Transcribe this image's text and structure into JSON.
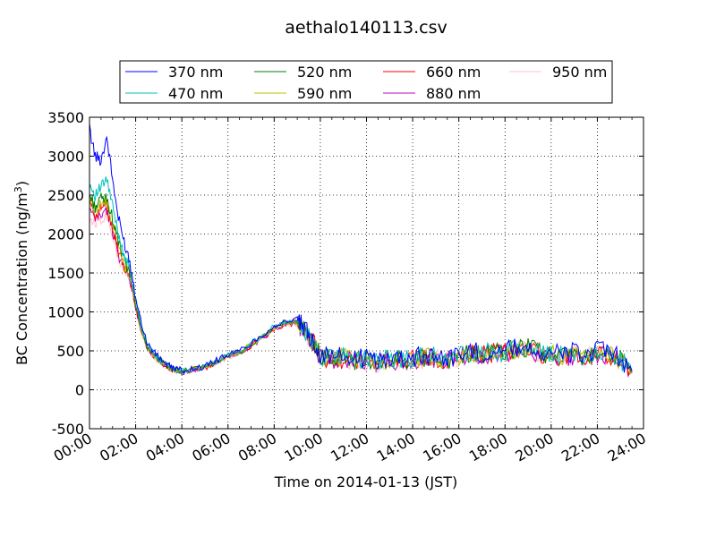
{
  "chart_data": {
    "type": "line",
    "title": "aethalo140113.csv",
    "xlabel": "Time on 2014-01-13 (JST)",
    "ylabel_main": "BC Concentration (ng/m",
    "ylabel_sup": "3",
    "ylabel_end": ")",
    "xlim": [
      "00:00",
      "24:00"
    ],
    "ylim": [
      -500,
      3500
    ],
    "x_ticks": [
      "00:00",
      "02:00",
      "04:00",
      "06:00",
      "08:00",
      "10:00",
      "12:00",
      "14:00",
      "16:00",
      "18:00",
      "20:00",
      "22:00",
      "24:00"
    ],
    "y_ticks": [
      "-500",
      "0",
      "500",
      "1000",
      "1500",
      "2000",
      "2500",
      "3000",
      "3500"
    ],
    "grid": true,
    "legend_position": "top",
    "x_hours": [
      0,
      0.25,
      0.5,
      0.75,
      1,
      1.25,
      1.5,
      1.75,
      2,
      2.25,
      2.5,
      2.75,
      3,
      3.25,
      3.5,
      3.75,
      4,
      4.5,
      5,
      5.5,
      6,
      6.5,
      7,
      7.5,
      8,
      8.5,
      9,
      9.25,
      9.5,
      9.75,
      10,
      10.5,
      11,
      11.5,
      12,
      12.5,
      13,
      13.5,
      14,
      14.5,
      15,
      15.5,
      16,
      16.5,
      17,
      17.5,
      18,
      18.5,
      19,
      19.5,
      20,
      20.5,
      21,
      21.5,
      22,
      22.5,
      23,
      23.5
    ],
    "series": [
      {
        "name": "370 nm",
        "color": "#0000ff",
        "values": [
          3350,
          3000,
          2950,
          3250,
          2700,
          2200,
          1900,
          1650,
          1200,
          850,
          600,
          500,
          420,
          350,
          300,
          270,
          250,
          270,
          300,
          380,
          450,
          500,
          600,
          700,
          820,
          880,
          900,
          800,
          700,
          600,
          450,
          420,
          430,
          400,
          400,
          380,
          400,
          420,
          420,
          430,
          450,
          400,
          450,
          500,
          470,
          500,
          500,
          550,
          550,
          500,
          480,
          450,
          480,
          450,
          500,
          480,
          400,
          250
        ]
      },
      {
        "name": "470 nm",
        "color": "#00bfbf",
        "values": [
          2650,
          2500,
          2600,
          2700,
          2350,
          2000,
          1750,
          1550,
          1150,
          800,
          580,
          480,
          400,
          340,
          290,
          260,
          240,
          265,
          290,
          370,
          440,
          490,
          590,
          690,
          810,
          870,
          880,
          790,
          690,
          590,
          440,
          410,
          420,
          390,
          390,
          370,
          390,
          410,
          410,
          420,
          440,
          390,
          440,
          490,
          460,
          490,
          490,
          540,
          540,
          490,
          470,
          440,
          470,
          440,
          490,
          470,
          390,
          240
        ]
      },
      {
        "name": "520 nm",
        "color": "#008000",
        "values": [
          2500,
          2350,
          2450,
          2450,
          2200,
          1900,
          1650,
          1500,
          1100,
          780,
          560,
          460,
          390,
          330,
          280,
          255,
          235,
          260,
          290,
          365,
          435,
          485,
          580,
          680,
          800,
          860,
          870,
          780,
          680,
          580,
          430,
          400,
          410,
          380,
          380,
          360,
          380,
          400,
          400,
          410,
          430,
          380,
          430,
          480,
          450,
          480,
          480,
          530,
          530,
          480,
          460,
          430,
          460,
          430,
          480,
          460,
          380,
          230
        ]
      },
      {
        "name": "590 nm",
        "color": "#bfbf00",
        "values": [
          2450,
          2300,
          2400,
          2400,
          2150,
          1850,
          1600,
          1480,
          1080,
          770,
          550,
          455,
          385,
          325,
          278,
          252,
          232,
          258,
          288,
          362,
          432,
          482,
          575,
          675,
          795,
          855,
          865,
          775,
          675,
          575,
          425,
          395,
          405,
          375,
          375,
          355,
          375,
          395,
          395,
          405,
          425,
          375,
          425,
          475,
          445,
          475,
          475,
          525,
          525,
          475,
          455,
          425,
          455,
          425,
          475,
          455,
          375,
          225
        ]
      },
      {
        "name": "660 nm",
        "color": "#ff0000",
        "values": [
          2400,
          2250,
          2350,
          2350,
          2100,
          1800,
          1580,
          1460,
          1060,
          760,
          545,
          450,
          380,
          320,
          275,
          250,
          230,
          255,
          285,
          360,
          430,
          480,
          570,
          670,
          790,
          850,
          860,
          770,
          670,
          570,
          420,
          390,
          400,
          370,
          370,
          350,
          370,
          390,
          390,
          400,
          420,
          370,
          420,
          470,
          440,
          470,
          470,
          520,
          520,
          470,
          450,
          420,
          450,
          420,
          470,
          450,
          370,
          220
        ]
      },
      {
        "name": "880 nm",
        "color": "#bf00bf",
        "values": [
          2300,
          2200,
          2250,
          2300,
          2050,
          1750,
          1550,
          1440,
          1040,
          750,
          540,
          445,
          375,
          318,
          272,
          248,
          228,
          252,
          282,
          356,
          426,
          476,
          566,
          666,
          786,
          846,
          856,
          766,
          666,
          566,
          416,
          386,
          396,
          366,
          366,
          346,
          366,
          386,
          386,
          396,
          416,
          366,
          416,
          466,
          436,
          466,
          466,
          516,
          516,
          466,
          446,
          416,
          446,
          416,
          466,
          446,
          366,
          216
        ]
      },
      {
        "name": "950 nm",
        "color": "#ffc0cb",
        "values": [
          2200,
          2150,
          2200,
          2250,
          2000,
          1700,
          1500,
          1420,
          1020,
          740,
          535,
          440,
          370,
          315,
          270,
          245,
          225,
          250,
          280,
          352,
          422,
          472,
          562,
          662,
          782,
          842,
          852,
          762,
          662,
          562,
          412,
          382,
          392,
          362,
          362,
          342,
          362,
          382,
          382,
          392,
          412,
          362,
          412,
          462,
          432,
          462,
          462,
          512,
          512,
          462,
          442,
          412,
          442,
          412,
          462,
          442,
          362,
          212
        ]
      }
    ]
  }
}
